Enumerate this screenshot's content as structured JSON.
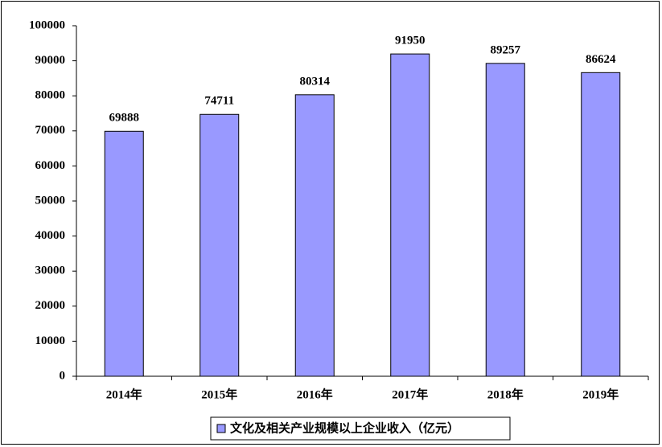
{
  "chart_data": {
    "type": "bar",
    "categories": [
      "2014年",
      "2015年",
      "2016年",
      "2017年",
      "2018年",
      "2019年"
    ],
    "series": [
      {
        "name": "文化及相关产业规模以上企业收入（亿元）",
        "color": "#9999ff",
        "values": [
          69888,
          74711,
          80314,
          91950,
          89257,
          86624
        ]
      }
    ],
    "ylim": [
      0,
      100000
    ],
    "yticks": [
      0,
      10000,
      20000,
      30000,
      40000,
      50000,
      60000,
      70000,
      80000,
      90000,
      100000
    ],
    "grid": false,
    "legend": "bottom"
  }
}
